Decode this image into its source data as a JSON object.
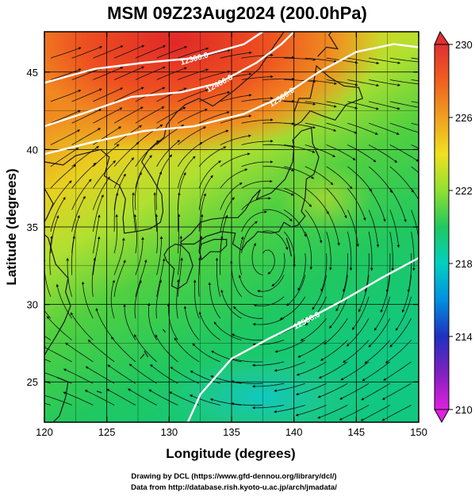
{
  "title": "MSM 09Z23Aug2024 (200.0hPa)",
  "xlabel": "Longitude (degrees)",
  "ylabel": "Latitude  (degrees)",
  "x_ticks": [
    "120",
    "125",
    "130",
    "135",
    "140",
    "145",
    "150"
  ],
  "y_ticks": [
    "25",
    "30",
    "35",
    "40",
    "45"
  ],
  "colorbar": {
    "ticks": [
      "230",
      "226",
      "222",
      "218",
      "214",
      "210"
    ],
    "min": 210,
    "max": 230,
    "colors": [
      "#e020e0",
      "#2020c0",
      "#0090e0",
      "#00d0c0",
      "#10c060",
      "#30d040",
      "#90e030",
      "#f0e020",
      "#f0a020",
      "#f06020",
      "#e03030"
    ]
  },
  "contour_labels": [
    "12300.0",
    "12400.0",
    "12500.0",
    "12500.0"
  ],
  "footer": {
    "line1": "Drawing by DCL (https://www.gfd-dennou.org/library/dcl/)",
    "line2": "Data from http://database.rish.kyoto-u.ac.jp/arch/jmadata/"
  },
  "chart_data": {
    "type": "map",
    "title": "MSM 09Z23Aug2024 (200.0hPa)",
    "xlabel": "Longitude (degrees)",
    "ylabel": "Latitude  (degrees)",
    "xlim": [
      120,
      150
    ],
    "ylim": [
      22.4,
      47.6
    ],
    "x_ticks": [
      120,
      125,
      130,
      135,
      140,
      145,
      150
    ],
    "y_ticks": [
      25,
      30,
      35,
      40,
      45
    ],
    "shaded_variable_range": [
      210,
      230
    ],
    "colorbar_ticks": [
      230,
      226,
      222,
      218,
      214,
      210
    ],
    "contours": [
      {
        "label": "12300.0",
        "points": [
          [
            120,
            44.3
          ],
          [
            124,
            45.2
          ],
          [
            128,
            45.6
          ],
          [
            132,
            45.9
          ],
          [
            136,
            46.8
          ],
          [
            137.5,
            47.6
          ]
        ]
      },
      {
        "label": "12400.0",
        "points": [
          [
            120,
            41.5
          ],
          [
            123,
            42.3
          ],
          [
            127,
            43.4
          ],
          [
            131,
            43.7
          ],
          [
            134,
            44.3
          ],
          [
            137,
            45.6
          ],
          [
            139,
            46.8
          ],
          [
            140,
            47.6
          ]
        ]
      },
      {
        "label": "12500.0",
        "points": [
          [
            120,
            39.7
          ],
          [
            124,
            40.5
          ],
          [
            128,
            41.2
          ],
          [
            132,
            41.5
          ],
          [
            136,
            42.3
          ],
          [
            139,
            43.4
          ],
          [
            142,
            45.0
          ],
          [
            145,
            46.3
          ],
          [
            148,
            46.8
          ],
          [
            150,
            46.6
          ]
        ]
      },
      {
        "label": "12500.0",
        "points": [
          [
            131.5,
            22.4
          ],
          [
            132.5,
            24.2
          ],
          [
            135,
            26.5
          ],
          [
            138,
            27.8
          ],
          [
            141,
            29.0
          ],
          [
            144,
            30.3
          ],
          [
            147,
            31.7
          ],
          [
            150,
            33.0
          ]
        ]
      }
    ]
  }
}
